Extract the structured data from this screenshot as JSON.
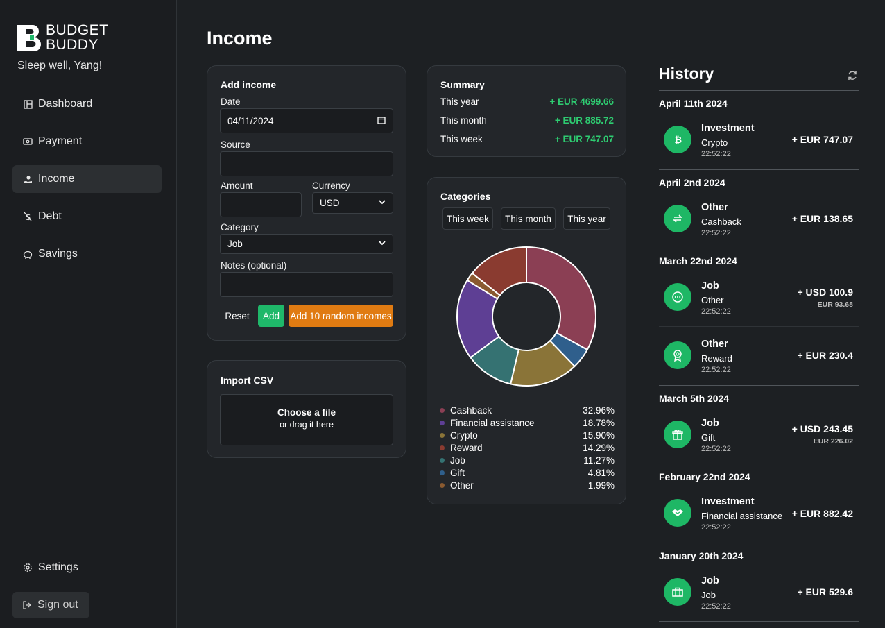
{
  "brand": {
    "line1": "BUDGET",
    "line2": "BUDDY",
    "greeting": "Sleep well, Yang!"
  },
  "nav": {
    "items": [
      {
        "label": "Dashboard",
        "icon": "dashboard-icon"
      },
      {
        "label": "Payment",
        "icon": "payment-icon"
      },
      {
        "label": "Income",
        "icon": "income-icon",
        "active": true
      },
      {
        "label": "Debt",
        "icon": "debt-icon"
      },
      {
        "label": "Savings",
        "icon": "savings-icon"
      }
    ],
    "settings": "Settings",
    "signout": "Sign out"
  },
  "page": {
    "title": "Income"
  },
  "add_income": {
    "title": "Add income",
    "date_label": "Date",
    "date_value": "04/11/2024",
    "source_label": "Source",
    "source_value": "",
    "amount_label": "Amount",
    "amount_value": "",
    "currency_label": "Currency",
    "currency_value": "USD",
    "category_label": "Category",
    "category_value": "Job",
    "notes_label": "Notes (optional)",
    "notes_value": "",
    "reset": "Reset",
    "add": "Add",
    "add_random": "Add 10 random incomes"
  },
  "import_csv": {
    "title": "Import CSV",
    "choose": "Choose a file",
    "drag": "or drag it here"
  },
  "summary": {
    "title": "Summary",
    "rows": [
      {
        "label": "This year",
        "value": "+ EUR 4699.66"
      },
      {
        "label": "This month",
        "value": "+ EUR 885.72"
      },
      {
        "label": "This week",
        "value": "+ EUR 747.07"
      }
    ]
  },
  "categories": {
    "title": "Categories",
    "tabs": [
      "This week",
      "This month",
      "This year"
    ]
  },
  "chart_data": {
    "type": "pie",
    "title": "Categories",
    "categories": [
      "Cashback",
      "Financial assistance",
      "Crypto",
      "Reward",
      "Job",
      "Gift",
      "Other"
    ],
    "values": [
      32.96,
      18.78,
      15.9,
      14.29,
      11.27,
      4.81,
      1.99
    ],
    "labels": [
      "32.96%",
      "18.78%",
      "15.90%",
      "14.29%",
      "11.27%",
      "4.81%",
      "1.99%"
    ],
    "colors": [
      "#8b3f54",
      "#5e3f94",
      "#8a7438",
      "#8a3b30",
      "#357272",
      "#2f5f8c",
      "#8a5a30"
    ],
    "draw_order": [
      0,
      5,
      2,
      4,
      1,
      6,
      3
    ],
    "donut": true
  },
  "history": {
    "title": "History",
    "groups": [
      {
        "date": "April 11th 2024",
        "items": [
          {
            "category": "Investment",
            "sub": "Crypto",
            "time": "22:52:22",
            "amount": "+ EUR 747.07",
            "amount2": "",
            "icon": "bitcoin-icon"
          }
        ]
      },
      {
        "date": "April 2nd 2024",
        "items": [
          {
            "category": "Other",
            "sub": "Cashback",
            "time": "22:52:22",
            "amount": "+ EUR 138.65",
            "amount2": "",
            "icon": "exchange-icon"
          }
        ]
      },
      {
        "date": "March 22nd 2024",
        "items": [
          {
            "category": "Job",
            "sub": "Other",
            "time": "22:52:22",
            "amount": "+ USD 100.9",
            "amount2": "EUR 93.68",
            "icon": "more-icon"
          },
          {
            "category": "Other",
            "sub": "Reward",
            "time": "22:52:22",
            "amount": "+ EUR 230.4",
            "amount2": "",
            "icon": "award-icon"
          }
        ]
      },
      {
        "date": "March 5th 2024",
        "items": [
          {
            "category": "Job",
            "sub": "Gift",
            "time": "22:52:22",
            "amount": "+ USD 243.45",
            "amount2": "EUR 226.02",
            "icon": "gift-icon"
          }
        ]
      },
      {
        "date": "February 22nd 2024",
        "items": [
          {
            "category": "Investment",
            "sub": "Financial assistance",
            "time": "22:52:22",
            "amount": "+ EUR 882.42",
            "amount2": "",
            "icon": "handshake-icon"
          }
        ]
      },
      {
        "date": "January 20th 2024",
        "items": [
          {
            "category": "Job",
            "sub": "Job",
            "time": "22:52:22",
            "amount": "+ EUR 529.6",
            "amount2": "",
            "icon": "briefcase-icon"
          }
        ]
      }
    ]
  },
  "colors": {
    "accent_green": "#2ecc71",
    "add_button": "#1fb86a",
    "random_button": "#e07b12",
    "history_icon": "#1eb765"
  }
}
